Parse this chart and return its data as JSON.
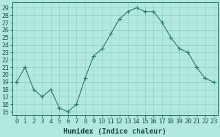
{
  "x": [
    0,
    1,
    2,
    3,
    4,
    5,
    6,
    7,
    8,
    9,
    10,
    11,
    12,
    13,
    14,
    15,
    16,
    17,
    18,
    19,
    20,
    21,
    22,
    23
  ],
  "y": [
    19,
    21,
    18,
    17,
    18,
    15.5,
    15,
    16,
    19.5,
    22.5,
    23.5,
    25.5,
    27.5,
    28.5,
    29,
    28.5,
    28.5,
    27,
    25,
    23.5,
    23,
    21,
    19.5,
    19
  ],
  "line_color": "#2e7d6b",
  "marker": "+",
  "marker_color": "#2e7d6b",
  "bg_color": "#b2e8e0",
  "grid_color": "#8ecfc7",
  "xlabel": "Humidex (Indice chaleur)",
  "xlabel_fontsize": 7.5,
  "ylabel_ticks": [
    15,
    16,
    17,
    18,
    19,
    20,
    21,
    22,
    23,
    24,
    25,
    26,
    27,
    28,
    29
  ],
  "ylim": [
    14.5,
    29.8
  ],
  "xlim": [
    -0.5,
    23.5
  ],
  "tick_fontsize": 6.5
}
